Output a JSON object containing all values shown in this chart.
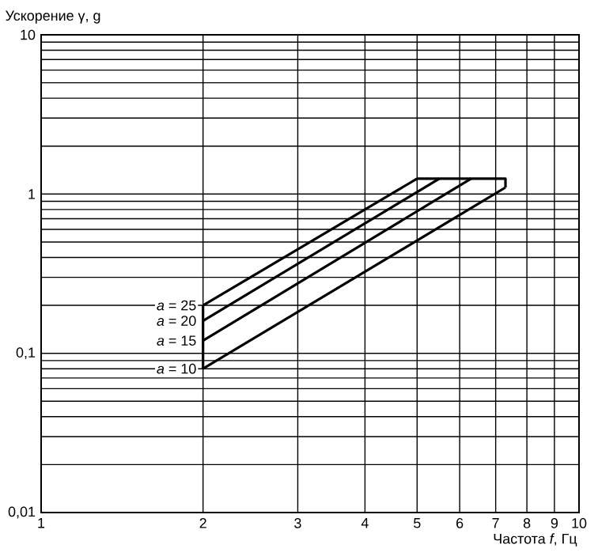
{
  "chart_data": {
    "type": "line",
    "xlabel": "Частота *f*, Гц",
    "ylabel": "Ускорение γ, g",
    "log": "xy",
    "grid": true,
    "line_style": "solid",
    "marker": "none",
    "xlim": [
      1,
      10
    ],
    "ylim": [
      0.01,
      10
    ],
    "xticks": [
      1,
      2,
      3,
      4,
      5,
      6,
      7,
      8,
      9,
      10
    ],
    "yticks": [
      {
        "value": 0.01,
        "label": "0,01"
      },
      {
        "value": 0.1,
        "label": "0,1"
      },
      1,
      10
    ],
    "series": [
      {
        "name": "*a* = 25",
        "color": "#000000",
        "x": [
          2,
          5
        ],
        "values": [
          0.2,
          1.25
        ]
      },
      {
        "name": "*a* = 20",
        "color": "#000000",
        "x": [
          2,
          5.5
        ],
        "values": [
          0.16,
          1.25
        ]
      },
      {
        "name": "*a* = 15",
        "color": "#000000",
        "x": [
          2,
          6.3
        ],
        "values": [
          0.12,
          1.25
        ]
      },
      {
        "name": "*a* = 10",
        "color": "#000000",
        "x": [
          2,
          7.3
        ],
        "values": [
          0.08,
          1.1
        ]
      },
      {
        "color": "#000000",
        "x": [
          2,
          2
        ],
        "values": [
          0.08,
          0.2
        ]
      },
      {
        "color": "#000000",
        "x": [
          5,
          7.3,
          7.3
        ],
        "values": [
          1.25,
          1.25,
          1.1
        ]
      }
    ]
  }
}
